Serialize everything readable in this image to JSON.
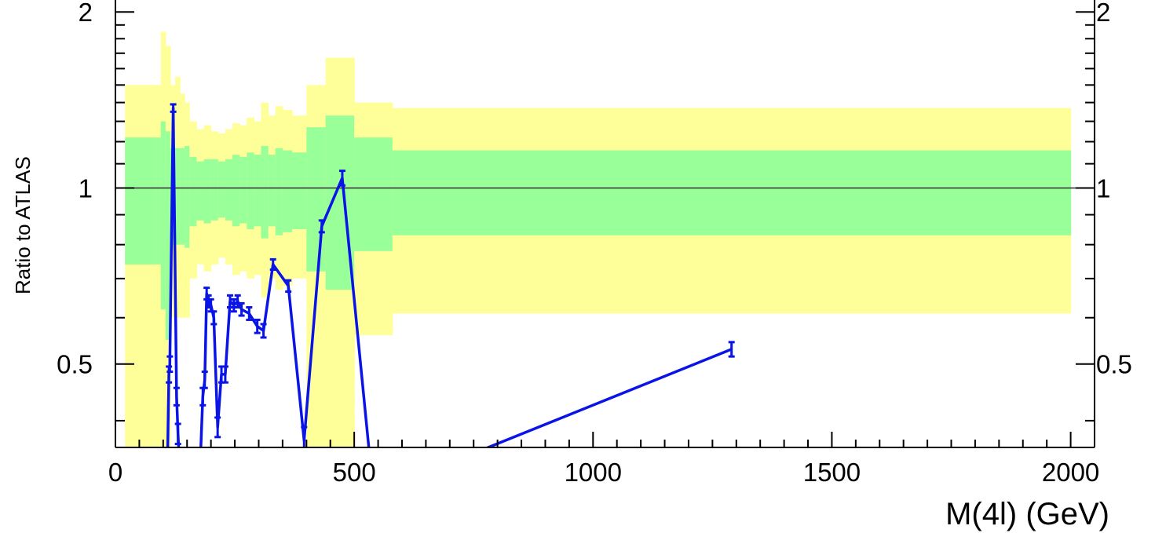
{
  "chart_data": {
    "type": "line",
    "xlabel": "M(4l) (GeV)",
    "ylabel": "Ratio to ATLAS",
    "xlim": [
      0,
      2050
    ],
    "ylim": [
      0.36,
      2.3
    ],
    "y_scale": "log",
    "x_tick_labels": [
      "0",
      "500",
      "1000",
      "1500",
      "2000"
    ],
    "y_tick_labels": [
      "0.5",
      "1",
      "2"
    ],
    "reference_line": 1,
    "colors": {
      "series": "#0a14e6",
      "inner_band": "#99ff99",
      "outer_band": "#ffff99",
      "reference": "#000000"
    },
    "bands": [
      {
        "x0": 20,
        "x1": 85,
        "inner": [
          0.74,
          1.22
        ],
        "outer": [
          0.3,
          1.5
        ]
      },
      {
        "x0": 85,
        "x1": 95,
        "inner": [
          0.74,
          1.22
        ],
        "outer": [
          0.3,
          1.5
        ]
      },
      {
        "x0": 95,
        "x1": 105,
        "inner": [
          0.62,
          1.3
        ],
        "outer": [
          0.3,
          1.85
        ]
      },
      {
        "x0": 105,
        "x1": 115,
        "inner": [
          0.55,
          1.25
        ],
        "outer": [
          0.3,
          1.75
        ]
      },
      {
        "x0": 115,
        "x1": 125,
        "inner": [
          0.8,
          1.17
        ],
        "outer": [
          0.6,
          1.5
        ]
      },
      {
        "x0": 125,
        "x1": 135,
        "inner": [
          0.8,
          1.17
        ],
        "outer": [
          0.6,
          1.55
        ]
      },
      {
        "x0": 135,
        "x1": 145,
        "inner": [
          0.8,
          1.17
        ],
        "outer": [
          0.6,
          1.45
        ]
      },
      {
        "x0": 145,
        "x1": 155,
        "inner": [
          0.79,
          1.18
        ],
        "outer": [
          0.6,
          1.4
        ]
      },
      {
        "x0": 155,
        "x1": 170,
        "inner": [
          0.86,
          1.13
        ],
        "outer": [
          0.7,
          1.3
        ]
      },
      {
        "x0": 170,
        "x1": 185,
        "inner": [
          0.88,
          1.11
        ],
        "outer": [
          0.74,
          1.26
        ]
      },
      {
        "x0": 185,
        "x1": 200,
        "inner": [
          0.87,
          1.12
        ],
        "outer": [
          0.72,
          1.28
        ]
      },
      {
        "x0": 200,
        "x1": 215,
        "inner": [
          0.88,
          1.12
        ],
        "outer": [
          0.74,
          1.25
        ]
      },
      {
        "x0": 215,
        "x1": 230,
        "inner": [
          0.89,
          1.11
        ],
        "outer": [
          0.76,
          1.24
        ]
      },
      {
        "x0": 230,
        "x1": 245,
        "inner": [
          0.88,
          1.12
        ],
        "outer": [
          0.74,
          1.26
        ]
      },
      {
        "x0": 245,
        "x1": 260,
        "inner": [
          0.86,
          1.14
        ],
        "outer": [
          0.71,
          1.29
        ]
      },
      {
        "x0": 260,
        "x1": 275,
        "inner": [
          0.87,
          1.13
        ],
        "outer": [
          0.72,
          1.28
        ]
      },
      {
        "x0": 275,
        "x1": 290,
        "inner": [
          0.85,
          1.15
        ],
        "outer": [
          0.7,
          1.32
        ]
      },
      {
        "x0": 290,
        "x1": 305,
        "inner": [
          0.86,
          1.14
        ],
        "outer": [
          0.71,
          1.3
        ]
      },
      {
        "x0": 305,
        "x1": 320,
        "inner": [
          0.82,
          1.18
        ],
        "outer": [
          0.65,
          1.4
        ]
      },
      {
        "x0": 320,
        "x1": 335,
        "inner": [
          0.86,
          1.14
        ],
        "outer": [
          0.7,
          1.33
        ]
      },
      {
        "x0": 335,
        "x1": 350,
        "inner": [
          0.83,
          1.17
        ],
        "outer": [
          0.67,
          1.38
        ]
      },
      {
        "x0": 350,
        "x1": 370,
        "inner": [
          0.84,
          1.16
        ],
        "outer": [
          0.68,
          1.36
        ]
      },
      {
        "x0": 370,
        "x1": 400,
        "inner": [
          0.85,
          1.15
        ],
        "outer": [
          0.7,
          1.33
        ]
      },
      {
        "x0": 400,
        "x1": 440,
        "inner": [
          0.72,
          1.27
        ],
        "outer": [
          0.34,
          1.5
        ]
      },
      {
        "x0": 440,
        "x1": 500,
        "inner": [
          0.67,
          1.33
        ],
        "outer": [
          0.34,
          1.67
        ]
      },
      {
        "x0": 500,
        "x1": 580,
        "inner": [
          0.78,
          1.22
        ],
        "outer": [
          0.56,
          1.4
        ]
      },
      {
        "x0": 580,
        "x1": 2000,
        "inner": [
          0.83,
          1.16
        ],
        "outer": [
          0.61,
          1.37
        ]
      }
    ],
    "series": [
      {
        "points": [
          {
            "x": 108,
            "y": 0.3,
            "err": 0
          },
          {
            "x": 112,
            "y": 0.48,
            "err": 0.015
          },
          {
            "x": 114,
            "y": 0.5,
            "err": 0.015
          },
          {
            "x": 121,
            "y": 1.37,
            "err": 0.02
          },
          {
            "x": 128,
            "y": 0.44,
            "err": 0.015
          },
          {
            "x": 131,
            "y": 0.38,
            "err": 0.015
          },
          {
            "x": 137,
            "y": 0.3,
            "err": 0
          },
          {
            "x": 175,
            "y": 0.3,
            "err": 0
          },
          {
            "x": 183,
            "y": 0.44,
            "err": 0.015
          },
          {
            "x": 187,
            "y": 0.47,
            "err": 0.015
          },
          {
            "x": 191,
            "y": 0.66,
            "err": 0.015
          },
          {
            "x": 195,
            "y": 0.64,
            "err": 0.015
          },
          {
            "x": 200,
            "y": 0.63,
            "err": 0.015
          },
          {
            "x": 206,
            "y": 0.6,
            "err": 0.015
          },
          {
            "x": 214,
            "y": 0.39,
            "err": 0.015
          },
          {
            "x": 222,
            "y": 0.48,
            "err": 0.015
          },
          {
            "x": 230,
            "y": 0.48,
            "err": 0.015
          },
          {
            "x": 240,
            "y": 0.64,
            "err": 0.015
          },
          {
            "x": 248,
            "y": 0.63,
            "err": 0.015
          },
          {
            "x": 256,
            "y": 0.64,
            "err": 0.015
          },
          {
            "x": 264,
            "y": 0.62,
            "err": 0.015
          },
          {
            "x": 280,
            "y": 0.61,
            "err": 0.015
          },
          {
            "x": 297,
            "y": 0.58,
            "err": 0.015
          },
          {
            "x": 310,
            "y": 0.57,
            "err": 0.015
          },
          {
            "x": 330,
            "y": 0.74,
            "err": 0.015
          },
          {
            "x": 362,
            "y": 0.68,
            "err": 0.015
          },
          {
            "x": 395,
            "y": 0.37,
            "err": 0.02
          },
          {
            "x": 432,
            "y": 0.86,
            "err": 0.02
          },
          {
            "x": 475,
            "y": 1.04,
            "err": 0.03
          },
          {
            "x": 540,
            "y": 0.3,
            "err": 0
          },
          {
            "x": 1290,
            "y": 0.53,
            "err": 0.015
          }
        ]
      }
    ]
  }
}
